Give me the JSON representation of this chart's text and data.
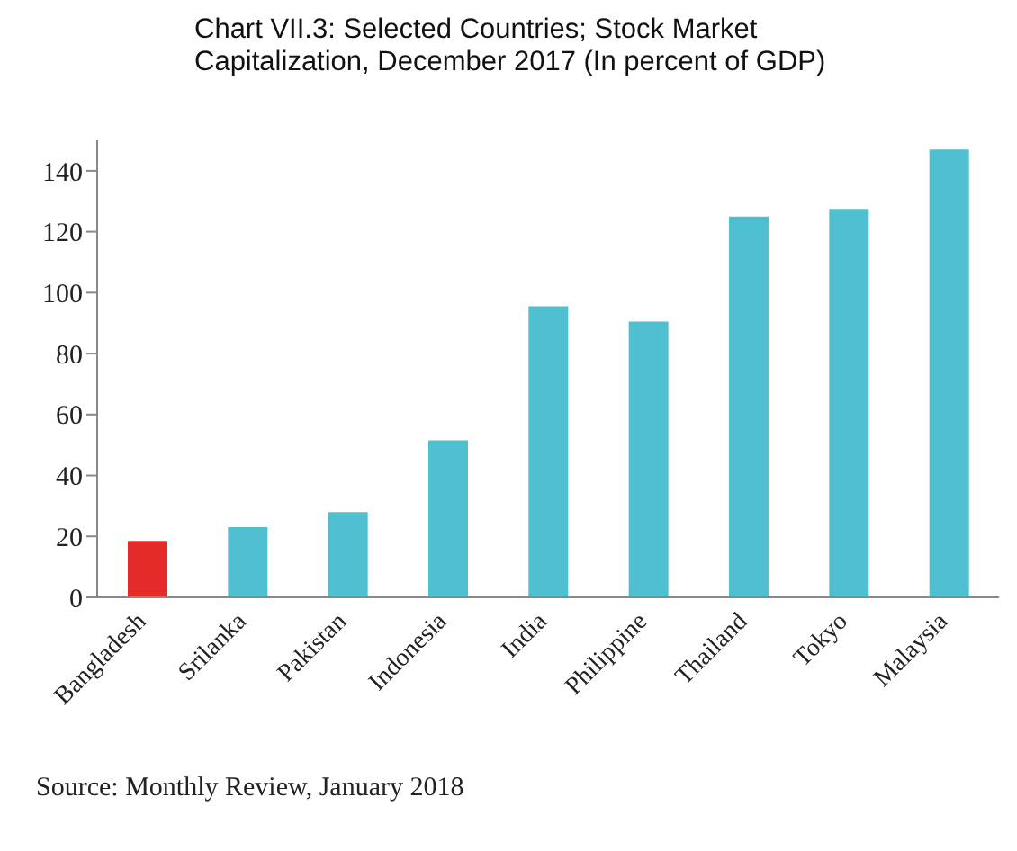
{
  "chart_data": {
    "type": "bar",
    "title": "Chart VII.3: Selected Countries; Stock Market Capitalization, December 2017 (In percent of GDP)",
    "categories": [
      "Bangladesh",
      "Srilanka",
      "Pakistan",
      "Indonesia",
      "India",
      "Philippine",
      "Thailand",
      "Tokyo",
      "Malaysia"
    ],
    "values": [
      18.5,
      23,
      28,
      51.5,
      95.5,
      90.5,
      125,
      127.5,
      147
    ],
    "colors": [
      "#e52a2a",
      "#4fc0cf",
      "#4fc0cf",
      "#4fc0cf",
      "#4fc0cf",
      "#4fc0cf",
      "#4fc0cf",
      "#4fc0cf",
      "#4fc0cf"
    ],
    "ylim": [
      0,
      150
    ],
    "yticks": [
      0,
      20,
      40,
      60,
      80,
      100,
      120,
      140
    ],
    "grid": false,
    "annotations": [
      "Source: Monthly Review, January 2018"
    ]
  }
}
